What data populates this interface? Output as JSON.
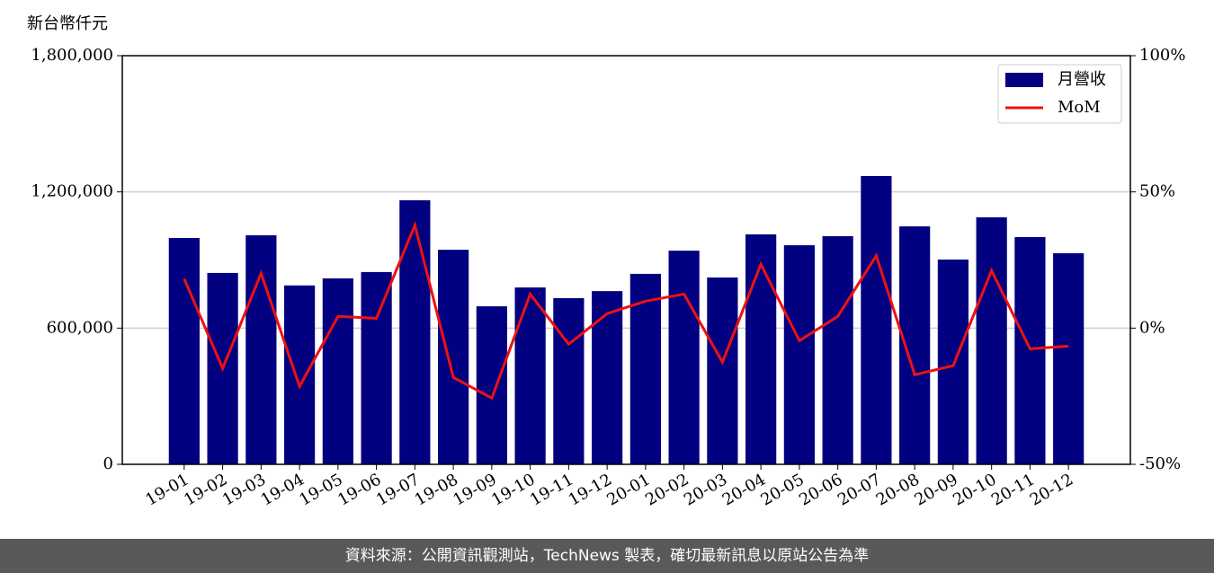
{
  "chart_data": {
    "type": "bar-line",
    "unit_label": "新台幣仟元",
    "source": "資料來源：公開資訊觀測站，TechNews 製表，確切最新訊息以原站公告為準",
    "categories": [
      "19-01",
      "19-02",
      "19-03",
      "19-04",
      "19-05",
      "19-06",
      "19-07",
      "19-08",
      "19-09",
      "19-10",
      "19-11",
      "19-12",
      "20-01",
      "20-02",
      "20-03",
      "20-04",
      "20-05",
      "20-06",
      "20-07",
      "20-08",
      "20-09",
      "20-10",
      "20-11",
      "20-12"
    ],
    "series": [
      {
        "name": "月營收",
        "color": "#000080",
        "type": "bar",
        "values": [
          997000,
          843000,
          1009000,
          788000,
          819000,
          847000,
          1163000,
          945000,
          696000,
          779000,
          732000,
          763000,
          839000,
          941000,
          823000,
          1013000,
          965000,
          1005000,
          1270000,
          1048000,
          902000,
          1088000,
          1001000,
          930000
        ]
      },
      {
        "name": "MoM",
        "color": "#ee1111",
        "type": "line",
        "axis": "y2",
        "values": [
          18.1,
          -14.8,
          20.1,
          -21.4,
          4.3,
          3.6,
          37.8,
          -18.1,
          -25.7,
          12.5,
          -5.9,
          5.3,
          9.9,
          12.5,
          -12.5,
          23.4,
          -4.6,
          4.3,
          26.6,
          -17.1,
          -13.8,
          21.1,
          -7.6,
          -6.6
        ]
      }
    ],
    "ylim": [
      0,
      1800000
    ],
    "yticks": [
      0,
      {
        "value": 600000,
        "label": "600,000"
      },
      {
        "value": 1200000,
        "label": "1,200,000"
      },
      {
        "value": 1800000,
        "label": "1,800,000"
      }
    ],
    "y2lim": [
      -50,
      100
    ],
    "y2ticks": [
      {
        "value": -50,
        "label": "-50%"
      },
      {
        "value": 0,
        "label": "0%"
      },
      {
        "value": 50,
        "label": "50%"
      },
      {
        "value": 100,
        "label": "100%"
      }
    ],
    "grid": true,
    "legend": "upper right"
  }
}
